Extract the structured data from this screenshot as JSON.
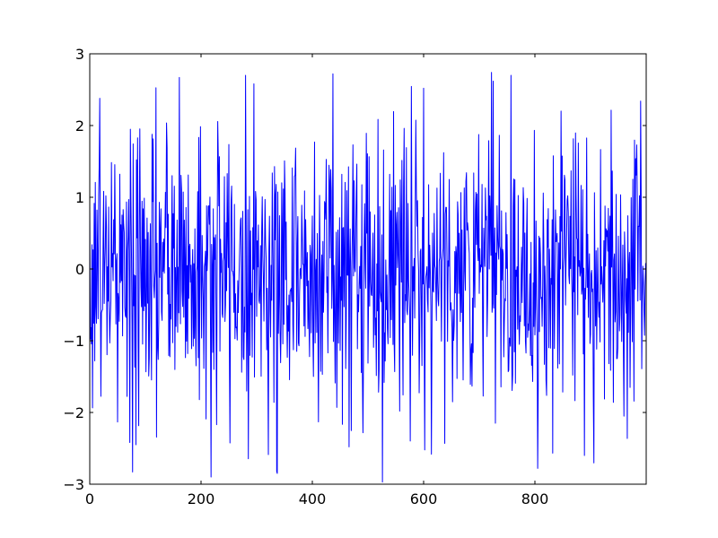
{
  "chart_data": {
    "type": "line",
    "title": "",
    "xlabel": "",
    "ylabel": "",
    "xlim": [
      0,
      1000
    ],
    "ylim": [
      -3,
      3
    ],
    "x_ticks": [
      0,
      200,
      400,
      600,
      800
    ],
    "x_tick_labels": [
      "0",
      "200",
      "400",
      "600",
      "800"
    ],
    "y_ticks": [
      3,
      2,
      1,
      0,
      -1,
      -2,
      -3
    ],
    "y_tick_labels": [
      "3",
      "2",
      "1",
      "0",
      "−1",
      "−2",
      "−3"
    ],
    "grid": false,
    "legend": "none",
    "series": [
      {
        "color": "#0000ff",
        "distribution": "approximately standard normal, mean 0, sd 1",
        "n_points": 1000,
        "x_start": 0,
        "x_step": 1,
        "y_min_observed": -2.97,
        "y_max_observed": 2.74,
        "landmarks": [
          {
            "x": 18,
            "y": 2.38
          },
          {
            "x": 77,
            "y": -2.83
          },
          {
            "x": 83,
            "y": -2.45
          },
          {
            "x": 161,
            "y": 2.67
          },
          {
            "x": 218,
            "y": -2.9
          },
          {
            "x": 337,
            "y": -2.85
          },
          {
            "x": 437,
            "y": 2.72
          },
          {
            "x": 526,
            "y": -2.97
          },
          {
            "x": 600,
            "y": 2.52
          },
          {
            "x": 722,
            "y": 2.74
          },
          {
            "x": 805,
            "y": -2.78
          },
          {
            "x": 889,
            "y": -2.6
          },
          {
            "x": 990,
            "y": 2.34
          }
        ]
      }
    ]
  }
}
